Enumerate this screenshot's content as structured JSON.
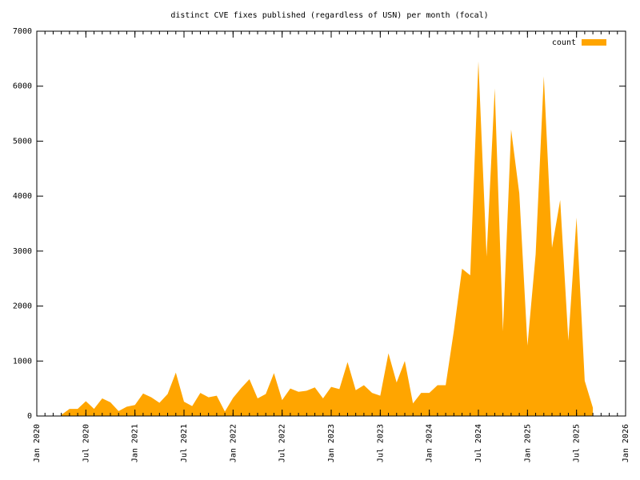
{
  "chart_data": {
    "type": "area",
    "title": "distinct CVE fixes published (regardless of USN) per month (focal)",
    "x": [
      "2020-04",
      "2020-05",
      "2020-06",
      "2020-07",
      "2020-08",
      "2020-09",
      "2020-10",
      "2020-11",
      "2020-12",
      "2021-01",
      "2021-02",
      "2021-03",
      "2021-04",
      "2021-05",
      "2021-06",
      "2021-07",
      "2021-08",
      "2021-09",
      "2021-10",
      "2021-11",
      "2021-12",
      "2022-01",
      "2022-02",
      "2022-03",
      "2022-04",
      "2022-05",
      "2022-06",
      "2022-07",
      "2022-08",
      "2022-09",
      "2022-10",
      "2022-11",
      "2022-12",
      "2023-01",
      "2023-02",
      "2023-03",
      "2023-04",
      "2023-05",
      "2023-06",
      "2023-07",
      "2023-08",
      "2023-09",
      "2023-10",
      "2023-11",
      "2023-12",
      "2024-01",
      "2024-02",
      "2024-03",
      "2024-04",
      "2024-05",
      "2024-06",
      "2024-07",
      "2024-08",
      "2024-09",
      "2024-10",
      "2024-11",
      "2024-12",
      "2025-01",
      "2025-02",
      "2025-03",
      "2025-04",
      "2025-05",
      "2025-06",
      "2025-07",
      "2025-08",
      "2025-09"
    ],
    "series": [
      {
        "name": "count",
        "color": "#ffa500",
        "values": [
          20,
          130,
          130,
          270,
          130,
          320,
          250,
          90,
          170,
          200,
          410,
          340,
          240,
          400,
          790,
          260,
          180,
          420,
          340,
          370,
          80,
          330,
          510,
          670,
          320,
          400,
          780,
          290,
          500,
          440,
          460,
          520,
          320,
          530,
          490,
          980,
          470,
          560,
          420,
          370,
          1140,
          610,
          1000,
          230,
          420,
          420,
          560,
          560,
          1550,
          2680,
          2560,
          6450,
          2900,
          5960,
          1540,
          5210,
          4050,
          1280,
          2940,
          6180,
          3060,
          3930,
          1370,
          3610,
          640,
          150
        ]
      }
    ],
    "xlim": [
      "2020-01",
      "2026-01"
    ],
    "xticks": [
      {
        "value": "2020-01",
        "label": "Jan 2020"
      },
      {
        "value": "2020-07",
        "label": "Jul 2020"
      },
      {
        "value": "2021-01",
        "label": "Jan 2021"
      },
      {
        "value": "2021-07",
        "label": "Jul 2021"
      },
      {
        "value": "2022-01",
        "label": "Jan 2022"
      },
      {
        "value": "2022-07",
        "label": "Jul 2022"
      },
      {
        "value": "2023-01",
        "label": "Jan 2023"
      },
      {
        "value": "2023-07",
        "label": "Jul 2023"
      },
      {
        "value": "2024-01",
        "label": "Jan 2024"
      },
      {
        "value": "2024-07",
        "label": "Jul 2024"
      },
      {
        "value": "2025-01",
        "label": "Jan 2025"
      },
      {
        "value": "2025-07",
        "label": "Jul 2025"
      },
      {
        "value": "2026-01",
        "label": "Jan 2026"
      }
    ],
    "ylim": [
      0,
      7000
    ],
    "yticks": [
      0,
      1000,
      2000,
      3000,
      4000,
      5000,
      6000,
      7000
    ],
    "legend": "top-right"
  }
}
